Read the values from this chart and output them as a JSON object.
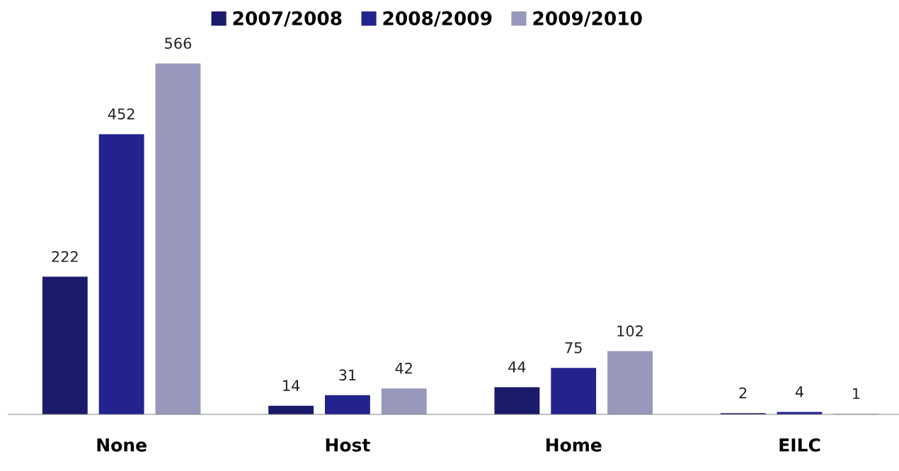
{
  "chart_data": {
    "type": "bar",
    "categories": [
      "None",
      "Host",
      "Home",
      "EILC"
    ],
    "series": [
      {
        "name": "2007/2008",
        "color": "#1b1b6b",
        "values": [
          222,
          14,
          44,
          2
        ]
      },
      {
        "name": "2008/2009",
        "color": "#23238f",
        "values": [
          452,
          31,
          75,
          4
        ]
      },
      {
        "name": "2009/2010",
        "color": "#9898bc",
        "values": [
          566,
          42,
          102,
          1
        ]
      }
    ],
    "data_labels": true,
    "legend": "top",
    "grid": false
  }
}
